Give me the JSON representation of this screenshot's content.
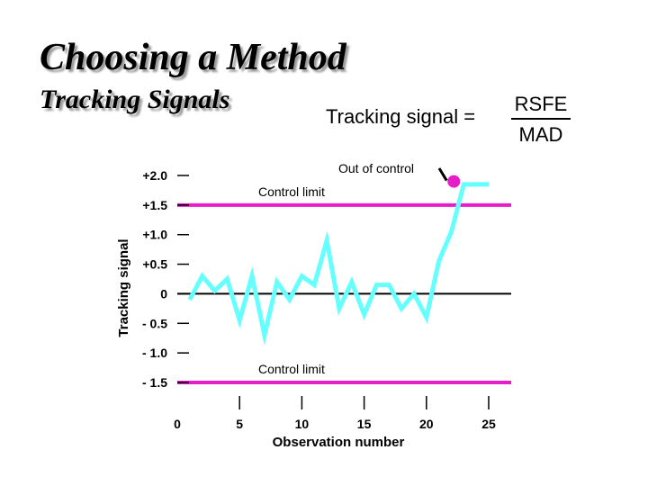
{
  "slide": {
    "title": "Choosing a Method",
    "subtitle": "Tracking Signals"
  },
  "formula": {
    "label": "Tracking signal =",
    "numerator": "RSFE",
    "denominator": "MAD"
  },
  "colors": {
    "series": "#66ffff",
    "limit": "#e61ec8",
    "out_point": "#e61ec8",
    "axis": "#000000"
  },
  "chart_data": {
    "type": "line",
    "xlabel": "Observation number",
    "ylabel": "Tracking signal",
    "xlim": [
      0,
      25
    ],
    "ylim": [
      -1.5,
      2.0
    ],
    "x_ticks": [
      0,
      5,
      10,
      15,
      20,
      25
    ],
    "x_tick_labels": [
      "0",
      "5",
      "10",
      "15",
      "20",
      "25"
    ],
    "y_ticks": [
      2.0,
      1.5,
      1.0,
      0.5,
      0,
      -0.5,
      -1.0,
      -1.5
    ],
    "y_tick_labels": [
      "+2.0",
      "+1.5",
      "+1.0",
      "+0.5",
      "0",
      "- 0.5",
      "- 1.0",
      "- 1.5"
    ],
    "series": [
      {
        "x": [
          1,
          2,
          3,
          4,
          5,
          6,
          7,
          8,
          9,
          10,
          11,
          12,
          13,
          14,
          15,
          16,
          17,
          18,
          19,
          20,
          21,
          22,
          23,
          24,
          25
        ],
        "y": [
          -0.1,
          0.3,
          0.05,
          0.25,
          -0.45,
          0.3,
          -0.7,
          0.2,
          -0.1,
          0.3,
          0.15,
          0.9,
          -0.25,
          0.2,
          -0.35,
          0.15,
          0.15,
          -0.25,
          0.0,
          -0.4,
          0.55,
          1.05,
          1.85,
          1.85,
          1.85
        ]
      }
    ],
    "out_point": {
      "x": 22.2,
      "y": 1.9
    },
    "limits": [
      {
        "y": 1.5,
        "label": "Control limit"
      },
      {
        "y": -1.5,
        "label": "Control limit"
      }
    ],
    "annotations": [
      {
        "text": "Out of control"
      }
    ]
  }
}
